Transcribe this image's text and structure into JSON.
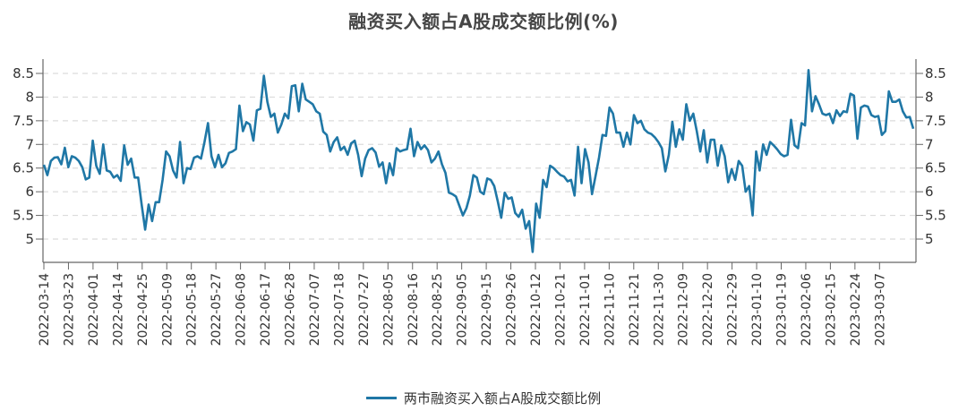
{
  "chart_data": {
    "type": "line",
    "title": "融资买入额占A股成交额比例(%)",
    "xlabel": "",
    "ylabel": "",
    "ylim": [
      4.6,
      8.8
    ],
    "yticks": [
      5,
      5.5,
      6,
      6.5,
      7,
      7.5,
      8,
      8.5
    ],
    "ytick_labels": [
      "5",
      "5.5",
      "6",
      "6.5",
      "7",
      "7.5",
      "8",
      "8.5"
    ],
    "grid": {
      "y": true,
      "style": "dashed",
      "color": "#dcdcdc"
    },
    "dual_y_axis_mirrored": true,
    "legend_position": "bottom",
    "color": "#1f77a6",
    "x_tick_labels": [
      "2022-03-14",
      "2022-03-23",
      "2022-04-01",
      "2022-04-14",
      "2022-04-25",
      "2022-05-09",
      "2022-05-18",
      "2022-05-27",
      "2022-06-08",
      "2022-06-17",
      "2022-06-28",
      "2022-07-07",
      "2022-07-18",
      "2022-07-27",
      "2022-08-05",
      "2022-08-16",
      "2022-08-25",
      "2022-09-05",
      "2022-09-15",
      "2022-09-26",
      "2022-10-12",
      "2022-10-21",
      "2022-11-01",
      "2022-11-10",
      "2022-11-21",
      "2022-11-30",
      "2022-12-09",
      "2022-12-20",
      "2022-12-29",
      "2023-01-10",
      "2023-01-19",
      "2023-02-06",
      "2023-02-15",
      "2023-02-24",
      "2023-03-07"
    ],
    "series": [
      {
        "name": "两市融资买入额占A股成交额比例",
        "values": [
          6.57,
          6.35,
          6.65,
          6.72,
          6.73,
          6.58,
          6.93,
          6.52,
          6.75,
          6.72,
          6.65,
          6.52,
          6.26,
          6.3,
          7.08,
          6.55,
          6.38,
          7.0,
          6.45,
          6.42,
          6.3,
          6.35,
          6.23,
          6.98,
          6.57,
          6.7,
          6.3,
          6.3,
          5.73,
          5.2,
          5.73,
          5.38,
          5.78,
          5.78,
          6.25,
          6.85,
          6.75,
          6.45,
          6.3,
          7.05,
          6.18,
          6.5,
          6.48,
          6.72,
          6.75,
          6.7,
          7.05,
          7.45,
          6.75,
          6.52,
          6.78,
          6.52,
          6.6,
          6.82,
          6.85,
          6.9,
          7.82,
          7.28,
          7.47,
          7.42,
          7.08,
          7.72,
          7.75,
          8.45,
          7.9,
          7.58,
          7.65,
          7.25,
          7.42,
          7.65,
          7.55,
          8.23,
          8.25,
          7.7,
          8.28,
          7.95,
          7.9,
          7.85,
          7.7,
          7.65,
          7.27,
          7.2,
          6.85,
          7.05,
          7.15,
          6.88,
          6.95,
          6.78,
          7.02,
          7.08,
          6.78,
          6.33,
          6.7,
          6.88,
          6.92,
          6.83,
          6.53,
          6.62,
          6.18,
          6.6,
          6.35,
          6.92,
          6.85,
          6.88,
          6.9,
          7.33,
          6.75,
          7.05,
          6.9,
          6.98,
          6.88,
          6.62,
          6.7,
          6.85,
          6.58,
          6.4,
          5.98,
          5.95,
          5.9,
          5.7,
          5.5,
          5.65,
          5.92,
          6.35,
          6.3,
          6.0,
          5.95,
          6.28,
          6.25,
          6.12,
          5.8,
          5.45,
          5.98,
          5.85,
          5.88,
          5.55,
          5.47,
          5.62,
          5.22,
          5.38,
          4.73,
          5.75,
          5.45,
          6.25,
          6.1,
          6.55,
          6.5,
          6.42,
          6.35,
          6.32,
          6.22,
          6.25,
          5.92,
          6.95,
          6.18,
          6.9,
          6.62,
          5.95,
          6.33,
          6.72,
          7.2,
          7.18,
          7.78,
          7.65,
          7.25,
          7.25,
          6.95,
          7.25,
          7.0,
          7.62,
          7.45,
          7.5,
          7.32,
          7.25,
          7.22,
          7.15,
          7.05,
          6.92,
          6.43,
          6.78,
          7.48,
          6.95,
          7.32,
          7.1,
          7.85,
          7.5,
          7.65,
          7.28,
          6.85,
          7.3,
          6.62,
          7.1,
          7.1,
          6.55,
          6.98,
          6.75,
          6.2,
          6.48,
          6.25,
          6.65,
          6.55,
          6.0,
          6.12,
          5.5,
          6.85,
          6.45,
          7.0,
          6.78,
          7.05,
          6.98,
          6.9,
          6.8,
          6.75,
          6.78,
          7.52,
          6.98,
          6.92,
          7.45,
          7.4,
          8.57,
          7.7,
          8.02,
          7.85,
          7.65,
          7.62,
          7.65,
          7.45,
          7.72,
          7.6,
          7.7,
          7.68,
          8.07,
          8.03,
          7.12,
          7.78,
          7.82,
          7.8,
          7.62,
          7.58,
          7.6,
          7.2,
          7.28,
          8.12,
          7.9,
          7.9,
          7.95,
          7.7,
          7.57,
          7.58,
          7.33
        ]
      }
    ]
  },
  "legend": {
    "label": "两市融资买入额占A股成交额比例"
  }
}
